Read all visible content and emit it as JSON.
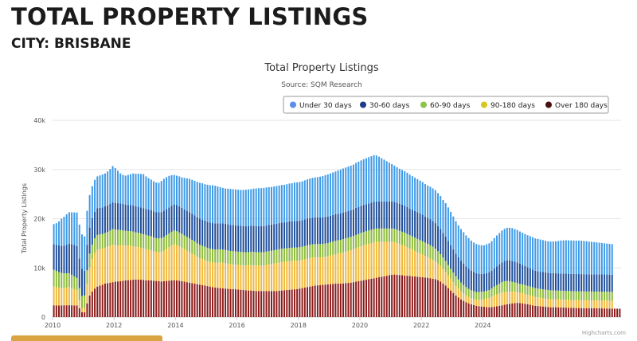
{
  "header": {
    "title": "TOTAL PROPERTY LISTINGS",
    "subtitle": "CITY: BRISBANE"
  },
  "chart_data": {
    "type": "bar",
    "stacked": true,
    "title": "Total Property Listings",
    "subtitle": "Source: SQM Research",
    "xlabel": "",
    "ylabel": "Total Property Listings",
    "ylim": [
      0,
      40000
    ],
    "yticks": [
      0,
      10000,
      20000,
      30000,
      40000
    ],
    "ytick_labels": [
      "0",
      "10k",
      "20k",
      "30k",
      "40k"
    ],
    "xticks": [
      "2010",
      "2012",
      "2014",
      "2016",
      "2018",
      "2020",
      "2022",
      "2024"
    ],
    "x_start": "2010-01",
    "grid": true,
    "legend_position": "top-right",
    "credit": "Highcharts.com",
    "colors": {
      "Under 30 days": "#3f9be8",
      "30-60 days": "#1e4f9c",
      "60-90 days": "#8dbb3a",
      "90-180 days": "#f0b93a",
      "Over 180 days": "#8b1a1a"
    },
    "series_order": [
      "Over 180 days",
      "90-180 days",
      "60-90 days",
      "30-60 days",
      "Under 30 days"
    ],
    "legend": [
      {
        "name": "Under 30 days",
        "color": "#5b8def"
      },
      {
        "name": "30-60 days",
        "color": "#1f3a8a"
      },
      {
        "name": "60-90 days",
        "color": "#8bc34a"
      },
      {
        "name": "90-180 days",
        "color": "#d4c81e"
      },
      {
        "name": "Over 180 days",
        "color": "#4a1010"
      }
    ],
    "series": [
      {
        "name": "Over 180 days",
        "values": [
          2400,
          2380,
          2360,
          2380,
          2400,
          2400,
          2420,
          2400,
          2380,
          2360,
          1800,
          1000,
          1000,
          2800,
          4400,
          5200,
          5800,
          6200,
          6400,
          6600,
          6800,
          6900,
          7000,
          7100,
          7200,
          7250,
          7300,
          7400,
          7450,
          7500,
          7550,
          7600,
          7620,
          7650,
          7600,
          7550,
          7500,
          7450,
          7450,
          7400,
          7350,
          7300,
          7250,
          7300,
          7350,
          7400,
          7450,
          7500,
          7450,
          7400,
          7300,
          7200,
          7100,
          7000,
          6900,
          6800,
          6700,
          6600,
          6500,
          6400,
          6300,
          6200,
          6100,
          6000,
          5950,
          5900,
          5850,
          5800,
          5750,
          5700,
          5700,
          5650,
          5600,
          5550,
          5500,
          5450,
          5400,
          5400,
          5350,
          5300,
          5300,
          5300,
          5300,
          5300,
          5300,
          5300,
          5300,
          5300,
          5350,
          5400,
          5450,
          5500,
          5550,
          5600,
          5650,
          5700,
          5800,
          5900,
          6000,
          6100,
          6200,
          6300,
          6400,
          6450,
          6500,
          6550,
          6600,
          6650,
          6700,
          6750,
          6800,
          6800,
          6800,
          6850,
          6900,
          6950,
          7000,
          7100,
          7200,
          7300,
          7400,
          7500,
          7600,
          7700,
          7800,
          7900,
          8000,
          8100,
          8200,
          8300,
          8400,
          8500,
          8600,
          8650,
          8600,
          8550,
          8500,
          8450,
          8400,
          8350,
          8300,
          8250,
          8200,
          8150,
          8100,
          8050,
          8000,
          7900,
          7800,
          7700,
          7500,
          7200,
          6800,
          6400,
          5900,
          5400,
          4900,
          4400,
          4000,
          3600,
          3300,
          3000,
          2800,
          2600,
          2450,
          2300,
          2200,
          2150,
          2100,
          2050,
          2000,
          2050,
          2100,
          2200,
          2300,
          2400,
          2500,
          2600,
          2700,
          2800,
          2850,
          2900,
          2850,
          2800,
          2700,
          2600,
          2500,
          2400,
          2300,
          2250,
          2200,
          2150,
          2100,
          2050,
          2000,
          2000,
          2000,
          1980,
          1960,
          1940,
          1920,
          1900,
          1880,
          1860,
          1850,
          1840,
          1830,
          1820,
          1810,
          1800,
          1800,
          1800,
          1790,
          1780,
          1770,
          1760,
          1750,
          1740,
          1730,
          1720,
          1710,
          1700
        ]
      },
      {
        "name": "90-180 days",
        "values": [
          3800,
          3700,
          3600,
          3500,
          3500,
          3600,
          3700,
          3500,
          3300,
          3100,
          1700,
          800,
          800,
          4000,
          5700,
          6600,
          7200,
          7500,
          7400,
          7300,
          7300,
          7400,
          7500,
          7600,
          7400,
          7300,
          7300,
          7200,
          7100,
          7000,
          6900,
          6800,
          6700,
          6600,
          6500,
          6400,
          6300,
          6200,
          6100,
          6000,
          5900,
          5900,
          6000,
          6200,
          6500,
          6800,
          7100,
          7300,
          7200,
          7000,
          6800,
          6600,
          6400,
          6200,
          6000,
          5800,
          5600,
          5400,
          5300,
          5200,
          5100,
          5000,
          5000,
          5050,
          5100,
          5150,
          5200,
          5150,
          5100,
          5050,
          5000,
          5000,
          5000,
          5000,
          5000,
          5050,
          5100,
          5150,
          5200,
          5200,
          5200,
          5200,
          5200,
          5300,
          5400,
          5500,
          5600,
          5700,
          5750,
          5800,
          5800,
          5800,
          5800,
          5800,
          5800,
          5750,
          5700,
          5700,
          5750,
          5800,
          5800,
          5800,
          5750,
          5700,
          5650,
          5600,
          5650,
          5700,
          5800,
          5900,
          6000,
          6100,
          6200,
          6300,
          6400,
          6500,
          6600,
          6700,
          6800,
          6900,
          7000,
          7100,
          7150,
          7200,
          7250,
          7300,
          7300,
          7200,
          7100,
          7000,
          6900,
          6800,
          6700,
          6600,
          6450,
          6300,
          6150,
          6000,
          5800,
          5600,
          5400,
          5200,
          5000,
          4800,
          4600,
          4400,
          4200,
          4000,
          3800,
          3600,
          3400,
          3200,
          3000,
          2800,
          2600,
          2400,
          2200,
          2000,
          1800,
          1650,
          1500,
          1400,
          1300,
          1250,
          1200,
          1200,
          1300,
          1400,
          1500,
          1700,
          1900,
          2100,
          2300,
          2400,
          2500,
          2600,
          2600,
          2550,
          2500,
          2400,
          2300,
          2200,
          2100,
          2050,
          2000,
          1950,
          1900,
          1850,
          1800,
          1750,
          1720,
          1700,
          1680,
          1660,
          1640,
          1620,
          1600,
          1600,
          1600,
          1600,
          1600,
          1600,
          1600,
          1600,
          1600,
          1600,
          1600,
          1600,
          1600,
          1600,
          1600,
          1600,
          1600,
          1600,
          1600,
          1600,
          1600,
          1600,
          1600
        ]
      },
      {
        "name": "60-90 days",
        "values": [
          3400,
          3300,
          3200,
          3100,
          3000,
          2900,
          2800,
          2700,
          2600,
          2500,
          2400,
          2500,
          2600,
          2700,
          2800,
          2900,
          3000,
          3000,
          3000,
          3000,
          3000,
          3000,
          3100,
          3200,
          3200,
          3200,
          3100,
          3000,
          3000,
          3000,
          3000,
          3000,
          2900,
          2900,
          2900,
          2900,
          2900,
          2900,
          2900,
          2800,
          2800,
          2800,
          2800,
          2800,
          2800,
          2800,
          2800,
          2800,
          2800,
          2800,
          2800,
          2800,
          2800,
          2800,
          2800,
          2800,
          2700,
          2700,
          2700,
          2700,
          2700,
          2700,
          2700,
          2700,
          2700,
          2700,
          2700,
          2700,
          2700,
          2700,
          2700,
          2700,
          2700,
          2700,
          2700,
          2700,
          2700,
          2700,
          2700,
          2700,
          2700,
          2700,
          2700,
          2700,
          2700,
          2700,
          2700,
          2700,
          2700,
          2700,
          2700,
          2700,
          2700,
          2700,
          2700,
          2700,
          2700,
          2700,
          2700,
          2700,
          2700,
          2700,
          2700,
          2700,
          2700,
          2700,
          2700,
          2700,
          2700,
          2700,
          2700,
          2700,
          2700,
          2700,
          2700,
          2700,
          2700,
          2700,
          2700,
          2700,
          2700,
          2700,
          2700,
          2700,
          2700,
          2700,
          2700,
          2700,
          2700,
          2700,
          2700,
          2700,
          2700,
          2700,
          2700,
          2700,
          2700,
          2700,
          2700,
          2700,
          2700,
          2700,
          2700,
          2700,
          2700,
          2700,
          2700,
          2700,
          2700,
          2600,
          2500,
          2400,
          2300,
          2200,
          2100,
          2000,
          1950,
          1900,
          1850,
          1800,
          1750,
          1700,
          1650,
          1600,
          1600,
          1600,
          1600,
          1600,
          1600,
          1600,
          1600,
          1700,
          1800,
          1900,
          2000,
          2100,
          2200,
          2200,
          2100,
          2000,
          1900,
          1800,
          1800,
          1800,
          1800,
          1800,
          1800,
          1800,
          1800,
          1800,
          1800,
          1800,
          1800,
          1800,
          1800,
          1800,
          1800,
          1800,
          1800,
          1800,
          1800,
          1800,
          1800,
          1800,
          1800,
          1800,
          1800,
          1800,
          1800,
          1800,
          1800,
          1800,
          1800,
          1800,
          1800,
          1800,
          1800,
          1800,
          1800,
          1800
        ]
      },
      {
        "name": "30-60 days",
        "values": [
          5200,
          5300,
          5400,
          5500,
          5600,
          5800,
          6000,
          6200,
          6400,
          6500,
          6000,
          5500,
          5000,
          5200,
          5300,
          5400,
          5400,
          5400,
          5400,
          5400,
          5400,
          5400,
          5400,
          5400,
          5400,
          5400,
          5400,
          5400,
          5300,
          5300,
          5300,
          5300,
          5300,
          5300,
          5300,
          5300,
          5300,
          5300,
          5300,
          5300,
          5300,
          5300,
          5300,
          5300,
          5300,
          5300,
          5300,
          5300,
          5300,
          5300,
          5300,
          5300,
          5300,
          5300,
          5300,
          5300,
          5300,
          5300,
          5300,
          5300,
          5300,
          5300,
          5300,
          5300,
          5300,
          5300,
          5300,
          5300,
          5300,
          5300,
          5300,
          5300,
          5300,
          5300,
          5300,
          5300,
          5300,
          5300,
          5300,
          5300,
          5300,
          5300,
          5300,
          5300,
          5300,
          5300,
          5300,
          5300,
          5300,
          5300,
          5300,
          5300,
          5400,
          5400,
          5400,
          5400,
          5400,
          5400,
          5400,
          5400,
          5400,
          5400,
          5400,
          5400,
          5400,
          5400,
          5400,
          5400,
          5400,
          5400,
          5400,
          5400,
          5400,
          5400,
          5400,
          5400,
          5400,
          5400,
          5500,
          5500,
          5500,
          5500,
          5500,
          5500,
          5500,
          5500,
          5500,
          5500,
          5500,
          5500,
          5500,
          5500,
          5500,
          5500,
          5500,
          5500,
          5500,
          5500,
          5500,
          5400,
          5400,
          5400,
          5400,
          5400,
          5400,
          5300,
          5300,
          5300,
          5200,
          5200,
          5100,
          5100,
          5000,
          5000,
          4900,
          4800,
          4700,
          4600,
          4500,
          4400,
          4300,
          4200,
          4100,
          4000,
          3900,
          3800,
          3700,
          3600,
          3600,
          3600,
          3600,
          3600,
          3700,
          3800,
          3900,
          4000,
          4100,
          4200,
          4200,
          4200,
          4200,
          4200,
          4100,
          4000,
          3900,
          3800,
          3700,
          3600,
          3500,
          3500,
          3500,
          3500,
          3500,
          3500,
          3500,
          3500,
          3500,
          3500,
          3500,
          3500,
          3500,
          3500,
          3500,
          3500,
          3500,
          3500,
          3500,
          3500,
          3500,
          3500,
          3500,
          3500,
          3500,
          3500,
          3500,
          3500,
          3500,
          3500,
          3500,
          3500,
          3500
        ]
      },
      {
        "name": "Under 30 days",
        "values": [
          4100,
          4400,
          4900,
          5500,
          5900,
          6200,
          6400,
          6500,
          6600,
          6800,
          6900,
          7000,
          7000,
          6900,
          6600,
          6500,
          6500,
          6500,
          6600,
          6700,
          6700,
          6900,
          7100,
          7400,
          7100,
          6600,
          6100,
          5900,
          5900,
          6100,
          6300,
          6500,
          6600,
          6700,
          6800,
          6900,
          6600,
          6400,
          6200,
          6100,
          6000,
          6000,
          6300,
          6500,
          6500,
          6400,
          6200,
          6000,
          6000,
          6100,
          6200,
          6400,
          6600,
          6800,
          6900,
          7000,
          7200,
          7300,
          7400,
          7400,
          7500,
          7600,
          7700,
          7650,
          7500,
          7350,
          7200,
          7200,
          7250,
          7300,
          7300,
          7300,
          7300,
          7300,
          7350,
          7400,
          7450,
          7450,
          7550,
          7650,
          7700,
          7700,
          7750,
          7750,
          7700,
          7650,
          7650,
          7650,
          7650,
          7650,
          7650,
          7700,
          7700,
          7700,
          7800,
          7850,
          7850,
          7900,
          7950,
          8000,
          8050,
          8100,
          8150,
          8200,
          8300,
          8400,
          8500,
          8550,
          8600,
          8650,
          8700,
          8800,
          8900,
          8950,
          9000,
          9050,
          9100,
          9100,
          9150,
          9200,
          9250,
          9300,
          9350,
          9400,
          9450,
          9500,
          9350,
          9100,
          8800,
          8500,
          8200,
          7900,
          7600,
          7350,
          7200,
          7100,
          7050,
          7000,
          6950,
          6900,
          6850,
          6800,
          6750,
          6700,
          6650,
          6600,
          6550,
          6600,
          6650,
          6700,
          6700,
          6700,
          6700,
          6750,
          6800,
          6800,
          6700,
          6600,
          6500,
          6450,
          6400,
          6300,
          6200,
          6100,
          6000,
          5950,
          5900,
          5850,
          5800,
          5850,
          5900,
          6000,
          6150,
          6300,
          6400,
          6500,
          6550,
          6600,
          6650,
          6700,
          6650,
          6600,
          6550,
          6500,
          6500,
          6500,
          6550,
          6600,
          6600,
          6600,
          6550,
          6500,
          6450,
          6400,
          6400,
          6450,
          6500,
          6600,
          6700,
          6750,
          6800,
          6800,
          6800,
          6800,
          6800,
          6800,
          6800,
          6750,
          6700,
          6650,
          6600,
          6550,
          6500,
          6450,
          6400,
          6350,
          6300,
          6250,
          6200,
          6150,
          6100,
          6050
        ]
      }
    ]
  }
}
